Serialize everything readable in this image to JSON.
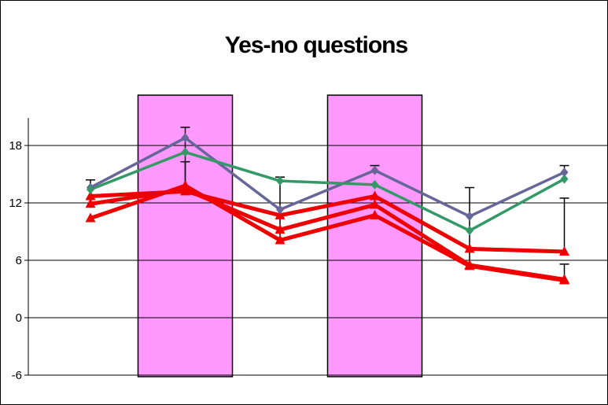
{
  "chart_data": {
    "type": "line",
    "title": "Yes-no questions",
    "xlabel": "",
    "ylabel": "",
    "x": [
      1,
      2,
      3,
      4,
      5,
      6
    ],
    "ylim": [
      -6,
      24
    ],
    "yticks": [
      -6,
      0,
      6,
      12,
      18
    ],
    "grid": "horizontal",
    "highlight_bands": [
      {
        "x": 2,
        "color": "#ff99ff"
      },
      {
        "x": 4,
        "color": "#ff99ff"
      }
    ],
    "series": [
      {
        "color": "#ee0000",
        "marker": "triangle",
        "values": [
          12.7,
          13.2,
          10.7,
          12.7,
          7.2,
          6.9
        ]
      },
      {
        "color": "#ee0000",
        "marker": "triangle",
        "values": [
          11.9,
          13.4,
          9.2,
          11.8,
          5.5,
          4.0
        ]
      },
      {
        "color": "#ee0000",
        "marker": "triangle",
        "values": [
          10.4,
          13.8,
          8.1,
          10.7,
          5.4,
          3.9
        ]
      },
      {
        "color": "#666699",
        "marker": "diamond",
        "values": [
          13.6,
          18.8,
          11.3,
          15.4,
          10.6,
          15.2
        ]
      },
      {
        "color": "#339966",
        "marker": "diamond",
        "values": [
          13.4,
          17.3,
          14.3,
          13.9,
          9.1,
          14.5
        ]
      }
    ],
    "error_bars": [
      {
        "x": 1,
        "low": 13.6,
        "high": 14.4
      },
      {
        "x": 2,
        "low": 13.2,
        "high": 19.9
      },
      {
        "x": 2,
        "low": 13.8,
        "high": 16.3
      },
      {
        "x": 3,
        "low": 8.1,
        "high": 14.7
      },
      {
        "x": 4,
        "low": 15.4,
        "high": 15.9
      },
      {
        "x": 5,
        "low": 5.5,
        "high": 13.6
      },
      {
        "x": 6,
        "low": 3.9,
        "high": 5.6
      },
      {
        "x": 6,
        "low": 6.9,
        "high": 12.5
      },
      {
        "x": 6,
        "low": 15.2,
        "high": 15.9
      }
    ]
  }
}
